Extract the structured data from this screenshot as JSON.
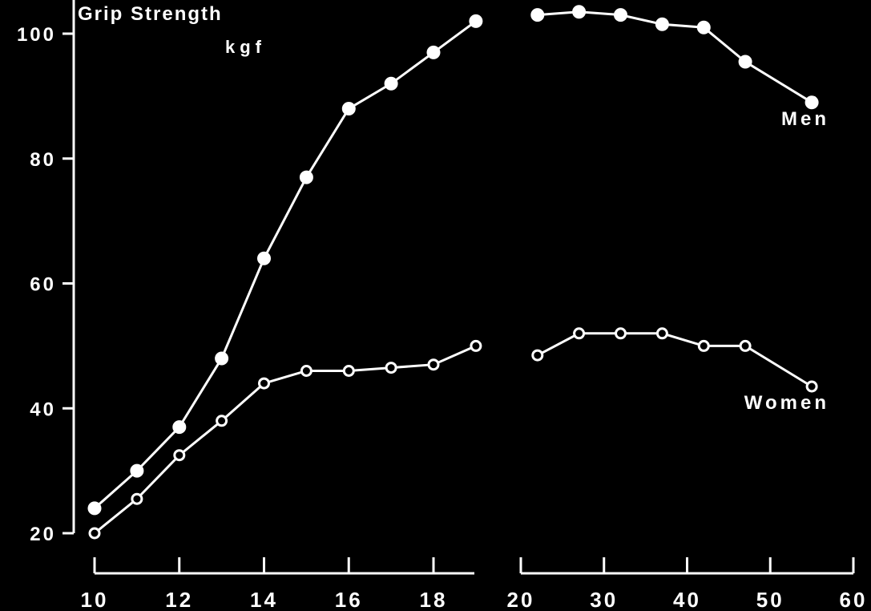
{
  "chart_data": {
    "type": "line",
    "title": "Grip Strength",
    "ylabel": "kgf",
    "xlabel": "",
    "ylim": [
      20,
      100
    ],
    "yticks": [
      20,
      40,
      60,
      80,
      100
    ],
    "grid": false,
    "background_color": "#000000",
    "foreground_color": "#ffffff",
    "segments": [
      {
        "x_scale": "linear",
        "xlim": [
          10,
          19
        ],
        "tick_values": [
          10,
          12,
          14,
          16,
          18
        ],
        "tick_labels": [
          "10",
          "12",
          "14",
          "16",
          "18"
        ]
      },
      {
        "x_scale": "linear",
        "xlim": [
          20,
          60
        ],
        "tick_values": [
          20,
          30,
          40,
          50,
          60
        ],
        "tick_labels": [
          "20",
          "30",
          "40",
          "50",
          "60"
        ]
      }
    ],
    "series": [
      {
        "name": "Men",
        "marker": "filled-circle",
        "points": [
          {
            "segment": 0,
            "x": 10,
            "y": 24
          },
          {
            "segment": 0,
            "x": 11,
            "y": 30
          },
          {
            "segment": 0,
            "x": 12,
            "y": 37
          },
          {
            "segment": 0,
            "x": 13,
            "y": 48
          },
          {
            "segment": 0,
            "x": 14,
            "y": 64
          },
          {
            "segment": 0,
            "x": 15,
            "y": 77
          },
          {
            "segment": 0,
            "x": 16,
            "y": 88
          },
          {
            "segment": 0,
            "x": 17,
            "y": 92
          },
          {
            "segment": 0,
            "x": 18,
            "y": 97
          },
          {
            "segment": 0,
            "x": 19,
            "y": 102
          },
          {
            "segment": 1,
            "x": 22,
            "y": 103
          },
          {
            "segment": 1,
            "x": 27,
            "y": 103.5
          },
          {
            "segment": 1,
            "x": 32,
            "y": 103
          },
          {
            "segment": 1,
            "x": 37,
            "y": 101.5
          },
          {
            "segment": 1,
            "x": 42,
            "y": 101
          },
          {
            "segment": 1,
            "x": 47,
            "y": 95.5
          },
          {
            "segment": 1,
            "x": 55,
            "y": 89
          }
        ]
      },
      {
        "name": "Women",
        "marker": "open-circle",
        "points": [
          {
            "segment": 0,
            "x": 10,
            "y": 20
          },
          {
            "segment": 0,
            "x": 11,
            "y": 25.5
          },
          {
            "segment": 0,
            "x": 12,
            "y": 32.5
          },
          {
            "segment": 0,
            "x": 13,
            "y": 38
          },
          {
            "segment": 0,
            "x": 14,
            "y": 44
          },
          {
            "segment": 0,
            "x": 15,
            "y": 46
          },
          {
            "segment": 0,
            "x": 16,
            "y": 46
          },
          {
            "segment": 0,
            "x": 17,
            "y": 46.5
          },
          {
            "segment": 0,
            "x": 18,
            "y": 47
          },
          {
            "segment": 0,
            "x": 19,
            "y": 50
          },
          {
            "segment": 1,
            "x": 22,
            "y": 48.5
          },
          {
            "segment": 1,
            "x": 27,
            "y": 52
          },
          {
            "segment": 1,
            "x": 32,
            "y": 52
          },
          {
            "segment": 1,
            "x": 37,
            "y": 52
          },
          {
            "segment": 1,
            "x": 42,
            "y": 50
          },
          {
            "segment": 1,
            "x": 47,
            "y": 50
          },
          {
            "segment": 1,
            "x": 55,
            "y": 43.5
          }
        ]
      }
    ]
  }
}
